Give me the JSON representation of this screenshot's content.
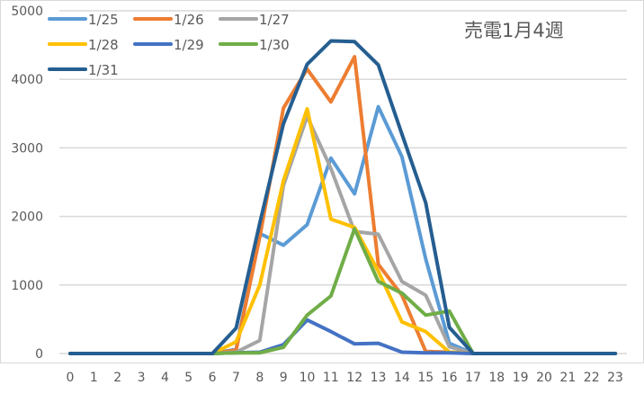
{
  "chart_data": {
    "type": "line",
    "title": "売電1月4週",
    "xlabel": "",
    "ylabel": "",
    "ylim": [
      0,
      5000
    ],
    "yticks": [
      0,
      1000,
      2000,
      3000,
      4000,
      5000
    ],
    "grid": true,
    "legend_position": "top-left",
    "x": [
      0,
      1,
      2,
      3,
      4,
      5,
      6,
      7,
      8,
      9,
      10,
      11,
      12,
      13,
      14,
      15,
      16,
      17,
      18,
      19,
      20,
      21,
      22,
      23
    ],
    "series": [
      {
        "name": "1/25",
        "color": "#5B9BD5",
        "values": [
          0,
          0,
          0,
          0,
          0,
          0,
          0,
          60,
          1750,
          1580,
          1880,
          2850,
          2330,
          3600,
          2870,
          1380,
          150,
          0,
          0,
          0,
          0,
          0,
          0,
          0
        ]
      },
      {
        "name": "1/26",
        "color": "#ED7D31",
        "values": [
          0,
          0,
          0,
          0,
          0,
          0,
          0,
          50,
          1700,
          3580,
          4150,
          3670,
          4330,
          1300,
          850,
          30,
          20,
          0,
          0,
          0,
          0,
          0,
          0,
          0
        ]
      },
      {
        "name": "1/27",
        "color": "#A5A5A5",
        "values": [
          0,
          0,
          0,
          0,
          0,
          0,
          0,
          20,
          190,
          2450,
          3460,
          2700,
          1780,
          1740,
          1050,
          850,
          100,
          0,
          0,
          0,
          0,
          0,
          0,
          0
        ]
      },
      {
        "name": "1/28",
        "color": "#FFC000",
        "values": [
          0,
          0,
          0,
          0,
          0,
          0,
          0,
          170,
          1000,
          2520,
          3570,
          1960,
          1840,
          1200,
          460,
          320,
          20,
          0,
          0,
          0,
          0,
          0,
          0,
          0
        ]
      },
      {
        "name": "1/29",
        "color": "#4472C4",
        "values": [
          0,
          0,
          0,
          0,
          0,
          0,
          0,
          10,
          20,
          130,
          490,
          320,
          140,
          150,
          20,
          10,
          10,
          0,
          0,
          0,
          0,
          0,
          0,
          0
        ]
      },
      {
        "name": "1/30",
        "color": "#70AD47",
        "values": [
          0,
          0,
          0,
          0,
          0,
          0,
          0,
          10,
          10,
          90,
          560,
          840,
          1820,
          1050,
          880,
          560,
          620,
          0,
          0,
          0,
          0,
          0,
          0,
          0
        ]
      },
      {
        "name": "1/31",
        "color": "#255E91",
        "values": [
          0,
          0,
          0,
          0,
          0,
          0,
          0,
          370,
          1900,
          3350,
          4220,
          4560,
          4550,
          4210,
          3200,
          2200,
          380,
          0,
          0,
          0,
          0,
          0,
          0,
          0
        ]
      }
    ]
  },
  "colors": {
    "grid": "#D9D9D9",
    "text": "#595959",
    "border": "#D9D9D9"
  }
}
